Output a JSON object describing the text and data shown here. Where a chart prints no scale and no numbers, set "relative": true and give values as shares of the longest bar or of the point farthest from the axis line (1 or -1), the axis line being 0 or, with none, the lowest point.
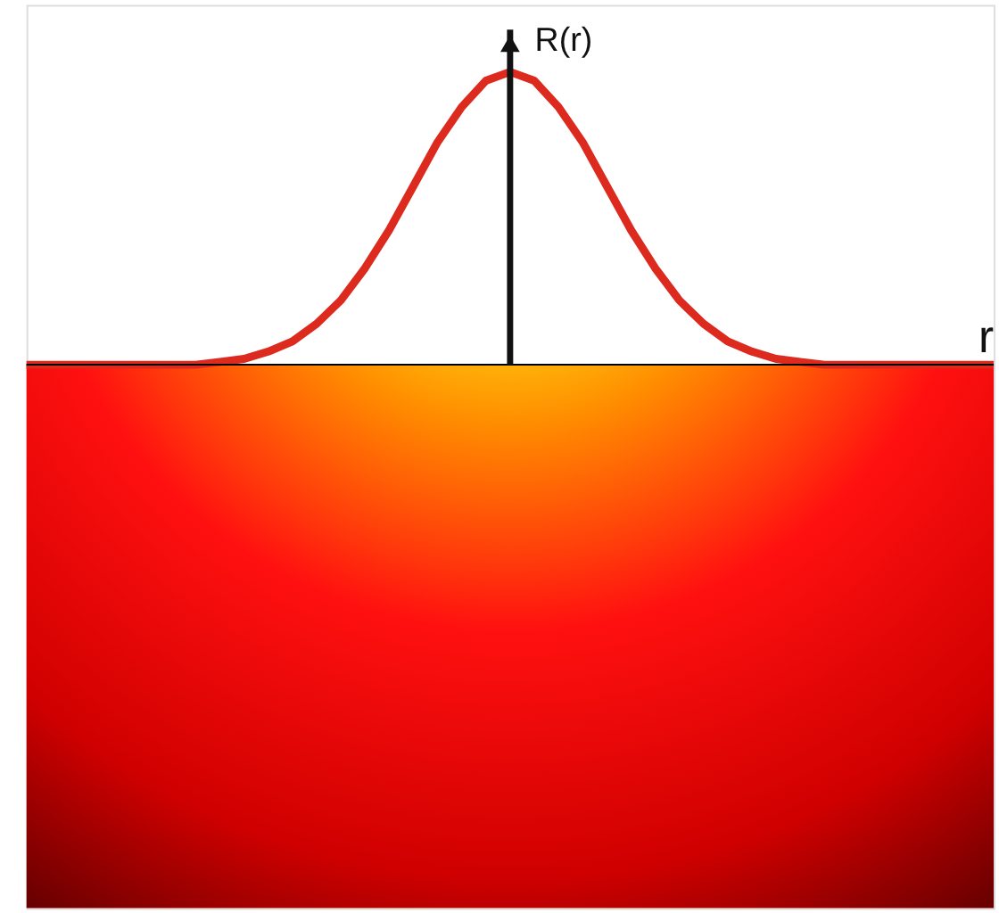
{
  "chart_data": {
    "type": "line",
    "relative": true,
    "xlabel": "r",
    "ylabel": "R(r)",
    "color": "#dd2a1e",
    "categories": [
      null,
      null,
      null,
      null,
      null,
      null,
      null,
      null,
      null,
      null,
      null,
      null,
      null,
      null,
      null,
      null,
      null,
      null,
      null,
      null,
      null,
      null,
      null,
      null,
      null,
      null,
      null,
      null,
      null,
      null,
      null,
      null,
      null,
      null,
      null,
      null,
      null,
      null,
      null,
      null,
      null
    ],
    "values": [
      0,
      0,
      0,
      0,
      0,
      0,
      0,
      0,
      0.01,
      0.02,
      0.045,
      0.08,
      0.14,
      0.22,
      0.33,
      0.46,
      0.61,
      0.76,
      0.88,
      0.97,
      1,
      0.97,
      0.88,
      0.76,
      0.61,
      0.46,
      0.33,
      0.22,
      0.14,
      0.08,
      0.045,
      0.02,
      0.01,
      0,
      0,
      0,
      0,
      0,
      0,
      0,
      0
    ]
  }
}
